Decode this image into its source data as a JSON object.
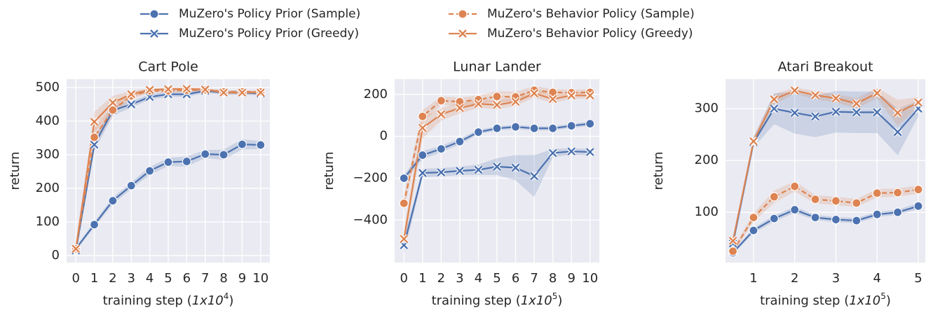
{
  "legend": [
    {
      "name": "MuZero's Policy Prior (Sample)",
      "color": "#4c72b0",
      "marker": "o",
      "dashed": false
    },
    {
      "name": "MuZero's Policy Prior (Greedy)",
      "color": "#4c72b0",
      "marker": "x",
      "dashed": false
    },
    {
      "name": "MuZero's Behavior Policy (Sample)",
      "color": "#dd8452",
      "marker": "o",
      "dashed": true
    },
    {
      "name": "MuZero's Behavior Policy (Greedy)",
      "color": "#dd8452",
      "marker": "x",
      "dashed": false
    }
  ],
  "chart_data": [
    {
      "type": "line",
      "title": "Cart Pole",
      "ylabel": "return",
      "xlabel": [
        "training step (",
        "1x10",
        "4",
        ")"
      ],
      "x": [
        0,
        1,
        2,
        3,
        4,
        5,
        6,
        7,
        8,
        9,
        10
      ],
      "xlim": [
        -0.5,
        10.5
      ],
      "xticks": [
        0,
        1,
        2,
        3,
        4,
        5,
        6,
        7,
        8,
        9,
        10
      ],
      "ylim": [
        -21,
        525
      ],
      "yticks": [
        0,
        100,
        200,
        300,
        400,
        500
      ],
      "grid": true,
      "series": [
        {
          "values": [
            20,
            92,
            163,
            208,
            252,
            278,
            280,
            302,
            300,
            331,
            329
          ],
          "errors": [
            5,
            8,
            10,
            10,
            12,
            12,
            15,
            12,
            15,
            15,
            12
          ]
        },
        {
          "values": [
            15,
            330,
            432,
            450,
            472,
            480,
            480,
            490,
            485,
            485,
            482
          ],
          "errors": [
            5,
            20,
            15,
            10,
            8,
            8,
            8,
            6,
            6,
            6,
            6
          ]
        },
        {
          "values": [
            20,
            352,
            433,
            475,
            490,
            490,
            492,
            493,
            487,
            487,
            487
          ],
          "errors": [
            5,
            25,
            15,
            10,
            6,
            6,
            5,
            5,
            5,
            5,
            5
          ]
        },
        {
          "values": [
            20,
            398,
            455,
            480,
            493,
            495,
            496,
            494,
            485,
            485,
            485
          ],
          "errors": [
            5,
            30,
            20,
            10,
            5,
            5,
            5,
            5,
            5,
            5,
            5
          ]
        }
      ]
    },
    {
      "type": "line",
      "title": "Lunar Lander",
      "ylabel": "return",
      "xlabel": [
        "training step (",
        "1x10",
        "5",
        ")"
      ],
      "x": [
        0,
        1,
        2,
        3,
        4,
        5,
        6,
        7,
        8,
        9,
        10
      ],
      "xlim": [
        -0.5,
        10.5
      ],
      "xticks": [
        0,
        1,
        2,
        3,
        4,
        5,
        6,
        7,
        8,
        9,
        10
      ],
      "ylim": [
        -603,
        273
      ],
      "yticks": [
        {
          "value": -400,
          "label": "−400"
        },
        {
          "value": -200,
          "label": "−200"
        },
        0,
        200
      ],
      "grid": true,
      "series": [
        {
          "values": [
            -200,
            -90,
            -60,
            -25,
            20,
            38,
            45,
            38,
            38,
            50,
            60
          ],
          "errors": [
            15,
            20,
            15,
            15,
            10,
            10,
            10,
            10,
            10,
            10,
            10
          ]
        },
        {
          "values": [
            -520,
            -175,
            -172,
            -165,
            -160,
            -145,
            -150,
            -190,
            -80,
            -72,
            -75
          ],
          "errors": [
            40,
            20,
            20,
            20,
            25,
            40,
            60,
            100,
            20,
            15,
            15
          ]
        },
        {
          "values": [
            -320,
            95,
            170,
            165,
            175,
            190,
            188,
            220,
            210,
            208,
            210
          ],
          "errors": [
            40,
            30,
            20,
            20,
            20,
            25,
            25,
            20,
            15,
            15,
            15
          ]
        },
        {
          "values": [
            -490,
            40,
            105,
            135,
            155,
            150,
            165,
            205,
            178,
            195,
            195
          ],
          "errors": [
            40,
            50,
            30,
            25,
            20,
            20,
            20,
            20,
            20,
            15,
            15
          ]
        }
      ]
    },
    {
      "type": "line",
      "title": "Atari Breakout",
      "ylabel": "return",
      "xlabel": [
        "training step (",
        "1x10",
        "5",
        ")"
      ],
      "x": [
        0.5,
        1,
        1.5,
        2,
        2.5,
        3,
        3.5,
        4,
        4.5,
        5
      ],
      "xlim": [
        0.32,
        5.17
      ],
      "xticks": [
        1,
        2,
        3,
        4,
        5
      ],
      "ylim": [
        3,
        357
      ],
      "yticks": [
        100,
        200,
        300
      ],
      "grid": true,
      "series": [
        {
          "values": [
            22,
            65,
            88,
            105,
            90,
            86,
            84,
            96,
            100,
            112
          ],
          "errors": [
            3,
            5,
            6,
            6,
            5,
            5,
            5,
            5,
            5,
            6
          ]
        },
        {
          "values": [
            40,
            235,
            300,
            292,
            285,
            294,
            293,
            293,
            255,
            300
          ],
          "errors": [
            8,
            10,
            30,
            40,
            40,
            40,
            40,
            40,
            45,
            15
          ]
        },
        {
          "values": [
            25,
            90,
            130,
            150,
            125,
            122,
            118,
            137,
            138,
            144
          ],
          "errors": [
            5,
            8,
            12,
            10,
            8,
            8,
            8,
            8,
            8,
            8
          ]
        },
        {
          "values": [
            45,
            237,
            318,
            335,
            326,
            320,
            310,
            330,
            292,
            312
          ],
          "errors": [
            5,
            8,
            10,
            6,
            8,
            8,
            10,
            10,
            25,
            10
          ]
        }
      ]
    }
  ]
}
